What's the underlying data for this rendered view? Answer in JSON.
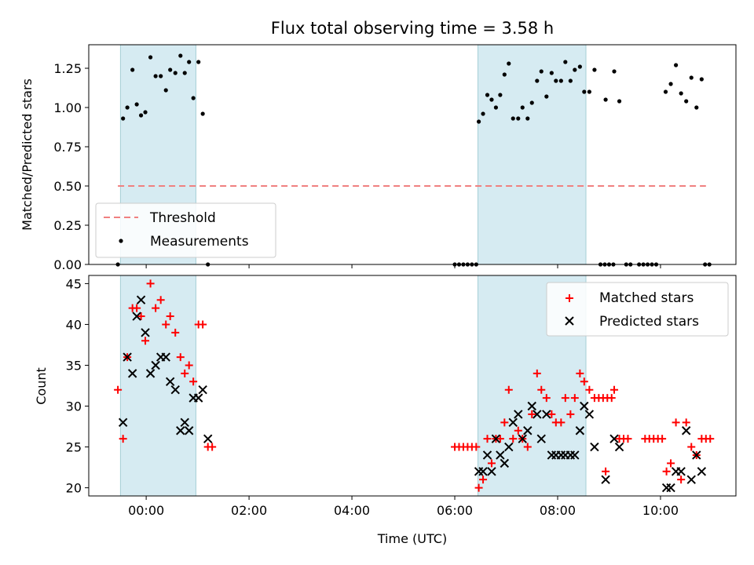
{
  "chart_data": [
    {
      "type": "scatter",
      "title": "Flux total observing time = 3.58 h",
      "ylabel": "Matched/Predicted stars",
      "ylim": [
        0,
        1.4
      ],
      "yticks": [
        0,
        0.25,
        0.5,
        0.75,
        1.0,
        1.25
      ],
      "ytick_labels": [
        "0.00",
        "0.25",
        "0.50",
        "0.75",
        "1.00",
        "1.25"
      ],
      "shaded_intervals": [
        [
          "-0:30",
          "0:58"
        ],
        [
          "6:27",
          "8:33"
        ]
      ],
      "legend": {
        "placement": "lower-left",
        "entries": [
          "Threshold",
          "Measurements"
        ]
      },
      "series": [
        {
          "name": "Threshold",
          "style": "dashed-line",
          "color": "#f08080",
          "x": [
            "-0:33",
            "10:53"
          ],
          "y": [
            0.5,
            0.5
          ]
        },
        {
          "name": "Measurements",
          "style": "dot",
          "color": "#000000",
          "points": [
            [
              "-0:33",
              0.0
            ],
            [
              "-0:27",
              0.93
            ],
            [
              "-0:22",
              1.0
            ],
            [
              "-0:16",
              1.24
            ],
            [
              "-0:11",
              1.02
            ],
            [
              "-0:06",
              0.95
            ],
            [
              "-0:01",
              0.97
            ],
            [
              "0:05",
              1.32
            ],
            [
              "0:11",
              1.2
            ],
            [
              "0:17",
              1.2
            ],
            [
              "0:23",
              1.11
            ],
            [
              "0:28",
              1.24
            ],
            [
              "0:34",
              1.22
            ],
            [
              "0:40",
              1.33
            ],
            [
              "0:45",
              1.22
            ],
            [
              "0:50",
              1.29
            ],
            [
              "0:55",
              1.06
            ],
            [
              "1:01",
              1.29
            ],
            [
              "1:06",
              0.96
            ],
            [
              "1:12",
              0.0
            ],
            [
              "6:00",
              0.0
            ],
            [
              "6:05",
              0.0
            ],
            [
              "6:10",
              0.0
            ],
            [
              "6:15",
              0.0
            ],
            [
              "6:20",
              0.0
            ],
            [
              "6:25",
              0.0
            ],
            [
              "6:28",
              0.91
            ],
            [
              "6:33",
              0.96
            ],
            [
              "6:38",
              1.08
            ],
            [
              "6:43",
              1.05
            ],
            [
              "6:48",
              1.0
            ],
            [
              "6:53",
              1.08
            ],
            [
              "6:58",
              1.21
            ],
            [
              "7:03",
              1.28
            ],
            [
              "7:08",
              0.93
            ],
            [
              "7:14",
              0.93
            ],
            [
              "7:19",
              1.0
            ],
            [
              "7:25",
              0.93
            ],
            [
              "7:30",
              1.03
            ],
            [
              "7:36",
              1.17
            ],
            [
              "7:41",
              1.23
            ],
            [
              "7:47",
              1.07
            ],
            [
              "7:53",
              1.22
            ],
            [
              "7:58",
              1.17
            ],
            [
              "8:04",
              1.17
            ],
            [
              "8:09",
              1.29
            ],
            [
              "8:15",
              1.17
            ],
            [
              "8:20",
              1.24
            ],
            [
              "8:26",
              1.26
            ],
            [
              "8:31",
              1.1
            ],
            [
              "8:37",
              1.1
            ],
            [
              "8:43",
              1.24
            ],
            [
              "8:50",
              0.0
            ],
            [
              "8:55",
              0.0
            ],
            [
              "9:00",
              0.0
            ],
            [
              "9:05",
              0.0
            ],
            [
              "8:56",
              1.05
            ],
            [
              "9:06",
              1.23
            ],
            [
              "9:12",
              1.04
            ],
            [
              "9:20",
              0.0
            ],
            [
              "9:25",
              0.0
            ],
            [
              "9:35",
              0.0
            ],
            [
              "9:40",
              0.0
            ],
            [
              "9:45",
              0.0
            ],
            [
              "9:50",
              0.0
            ],
            [
              "9:55",
              0.0
            ],
            [
              "10:06",
              1.1
            ],
            [
              "10:12",
              1.15
            ],
            [
              "10:18",
              1.27
            ],
            [
              "10:24",
              1.09
            ],
            [
              "10:30",
              1.04
            ],
            [
              "10:36",
              1.19
            ],
            [
              "10:42",
              1.0
            ],
            [
              "10:48",
              1.18
            ],
            [
              "10:52",
              0.0
            ],
            [
              "10:57",
              0.0
            ]
          ]
        }
      ]
    },
    {
      "type": "scatter",
      "xlabel": "Time (UTC)",
      "ylabel": "Count",
      "ylim": [
        19,
        46
      ],
      "yticks": [
        20,
        25,
        30,
        35,
        40,
        45
      ],
      "ytick_labels": [
        "20",
        "25",
        "30",
        "35",
        "40",
        "45"
      ],
      "xlim": [
        "-1:07",
        "11:28"
      ],
      "xticks": [
        "0:00",
        "2:00",
        "4:00",
        "6:00",
        "8:00",
        "10:00"
      ],
      "xtick_labels": [
        "00:00",
        "02:00",
        "04:00",
        "06:00",
        "08:00",
        "10:00"
      ],
      "shaded_intervals": [
        [
          "-0:30",
          "0:58"
        ],
        [
          "6:27",
          "8:33"
        ]
      ],
      "legend": {
        "placement": "top-right",
        "entries": [
          "Matched stars",
          "Predicted stars"
        ]
      },
      "series": [
        {
          "name": "Matched stars",
          "marker": "+",
          "color": "#ff0000",
          "points": [
            [
              "-0:33",
              32
            ],
            [
              "-0:27",
              26
            ],
            [
              "-0:22",
              36
            ],
            [
              "-0:16",
              42
            ],
            [
              "-0:11",
              42
            ],
            [
              "-0:06",
              41
            ],
            [
              "-0:01",
              38
            ],
            [
              "0:05",
              45
            ],
            [
              "0:11",
              42
            ],
            [
              "0:17",
              43
            ],
            [
              "0:23",
              40
            ],
            [
              "0:28",
              41
            ],
            [
              "0:34",
              39
            ],
            [
              "0:40",
              36
            ],
            [
              "0:45",
              34
            ],
            [
              "0:50",
              35
            ],
            [
              "0:55",
              33
            ],
            [
              "1:01",
              40
            ],
            [
              "1:06",
              40
            ],
            [
              "1:12",
              25
            ],
            [
              "1:17",
              25
            ],
            [
              "6:00",
              25
            ],
            [
              "6:05",
              25
            ],
            [
              "6:10",
              25
            ],
            [
              "6:15",
              25
            ],
            [
              "6:20",
              25
            ],
            [
              "6:25",
              25
            ],
            [
              "6:28",
              20
            ],
            [
              "6:33",
              21
            ],
            [
              "6:38",
              26
            ],
            [
              "6:43",
              23
            ],
            [
              "6:48",
              26
            ],
            [
              "6:53",
              26
            ],
            [
              "6:58",
              28
            ],
            [
              "7:03",
              32
            ],
            [
              "7:08",
              26
            ],
            [
              "7:14",
              27
            ],
            [
              "7:19",
              26
            ],
            [
              "7:25",
              25
            ],
            [
              "7:30",
              29
            ],
            [
              "7:36",
              34
            ],
            [
              "7:41",
              32
            ],
            [
              "7:47",
              31
            ],
            [
              "7:53",
              29
            ],
            [
              "7:58",
              28
            ],
            [
              "8:04",
              28
            ],
            [
              "8:09",
              31
            ],
            [
              "8:15",
              29
            ],
            [
              "8:20",
              31
            ],
            [
              "8:26",
              34
            ],
            [
              "8:31",
              33
            ],
            [
              "8:37",
              32
            ],
            [
              "8:43",
              31
            ],
            [
              "8:48",
              31
            ],
            [
              "8:53",
              31
            ],
            [
              "8:58",
              31
            ],
            [
              "9:03",
              31
            ],
            [
              "8:56",
              22
            ],
            [
              "9:06",
              32
            ],
            [
              "9:12",
              26
            ],
            [
              "9:17",
              26
            ],
            [
              "9:22",
              26
            ],
            [
              "9:42",
              26
            ],
            [
              "9:47",
              26
            ],
            [
              "9:52",
              26
            ],
            [
              "9:57",
              26
            ],
            [
              "10:02",
              26
            ],
            [
              "10:07",
              22
            ],
            [
              "10:12",
              23
            ],
            [
              "10:18",
              28
            ],
            [
              "10:24",
              21
            ],
            [
              "10:30",
              28
            ],
            [
              "10:36",
              25
            ],
            [
              "10:42",
              24
            ],
            [
              "10:48",
              26
            ],
            [
              "10:53",
              26
            ],
            [
              "10:58",
              26
            ]
          ]
        },
        {
          "name": "Predicted stars",
          "marker": "x",
          "color": "#000000",
          "points": [
            [
              "-0:27",
              28
            ],
            [
              "-0:22",
              36
            ],
            [
              "-0:16",
              34
            ],
            [
              "-0:11",
              41
            ],
            [
              "-0:06",
              43
            ],
            [
              "-0:01",
              39
            ],
            [
              "0:05",
              34
            ],
            [
              "0:11",
              35
            ],
            [
              "0:17",
              36
            ],
            [
              "0:23",
              36
            ],
            [
              "0:28",
              33
            ],
            [
              "0:34",
              32
            ],
            [
              "0:40",
              27
            ],
            [
              "0:45",
              28
            ],
            [
              "0:50",
              27
            ],
            [
              "0:55",
              31
            ],
            [
              "1:01",
              31
            ],
            [
              "1:06",
              32
            ],
            [
              "1:12",
              26
            ],
            [
              "6:28",
              22
            ],
            [
              "6:33",
              22
            ],
            [
              "6:38",
              24
            ],
            [
              "6:43",
              22
            ],
            [
              "6:48",
              26
            ],
            [
              "6:53",
              24
            ],
            [
              "6:58",
              23
            ],
            [
              "7:03",
              25
            ],
            [
              "7:08",
              28
            ],
            [
              "7:14",
              29
            ],
            [
              "7:19",
              26
            ],
            [
              "7:25",
              27
            ],
            [
              "7:30",
              30
            ],
            [
              "7:36",
              29
            ],
            [
              "7:41",
              26
            ],
            [
              "7:47",
              29
            ],
            [
              "7:53",
              24
            ],
            [
              "7:58",
              24
            ],
            [
              "8:04",
              24
            ],
            [
              "8:09",
              24
            ],
            [
              "8:15",
              24
            ],
            [
              "8:20",
              24
            ],
            [
              "8:26",
              27
            ],
            [
              "8:31",
              30
            ],
            [
              "8:37",
              29
            ],
            [
              "8:43",
              25
            ],
            [
              "8:56",
              21
            ],
            [
              "9:06",
              26
            ],
            [
              "9:12",
              25
            ],
            [
              "10:07",
              20
            ],
            [
              "10:12",
              20
            ],
            [
              "10:18",
              22
            ],
            [
              "10:24",
              22
            ],
            [
              "10:30",
              27
            ],
            [
              "10:36",
              21
            ],
            [
              "10:42",
              24
            ],
            [
              "10:48",
              22
            ]
          ]
        }
      ]
    }
  ]
}
